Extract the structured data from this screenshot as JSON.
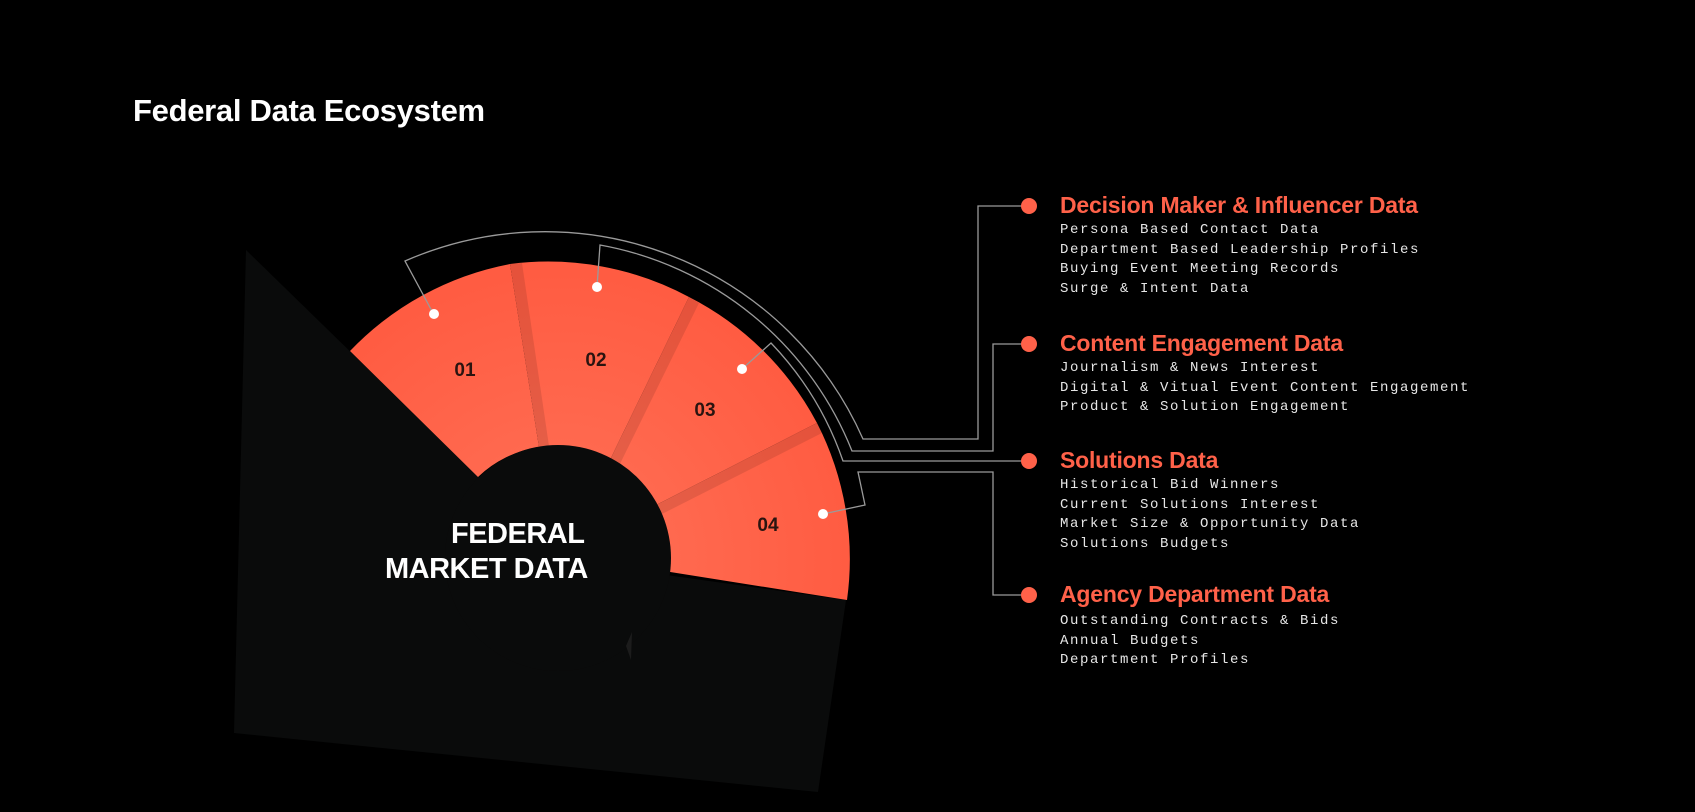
{
  "title": "Federal Data Ecosystem",
  "colors": {
    "background": "#000000",
    "accent": "#ff6149",
    "panel": "#0b0b0b",
    "connector": "#9a9a9a",
    "text": "#ffffff"
  },
  "center": {
    "line1": "FEDERAL",
    "line2": "MARKET DATA"
  },
  "segments": [
    {
      "number": "01"
    },
    {
      "number": "02"
    },
    {
      "number": "03"
    },
    {
      "number": "04"
    }
  ],
  "categories": [
    {
      "title": "Decision Maker & Influencer Data",
      "items": [
        "Persona Based Contact Data",
        "Department Based Leadership Profiles",
        "Buying Event Meeting Records",
        "Surge & Intent Data"
      ]
    },
    {
      "title": "Content Engagement Data",
      "items": [
        "Journalism & News Interest",
        "Digital & Vitual Event Content Engagement",
        "Product & Solution Engagement"
      ]
    },
    {
      "title": "Solutions Data",
      "items": [
        "Historical Bid Winners",
        "Current Solutions Interest",
        "Market Size & Opportunity Data",
        "Solutions Budgets"
      ]
    },
    {
      "title": "Agency Department Data",
      "items": [
        "Outstanding Contracts & Bids",
        "Annual Budgets",
        "Department Profiles"
      ]
    }
  ]
}
